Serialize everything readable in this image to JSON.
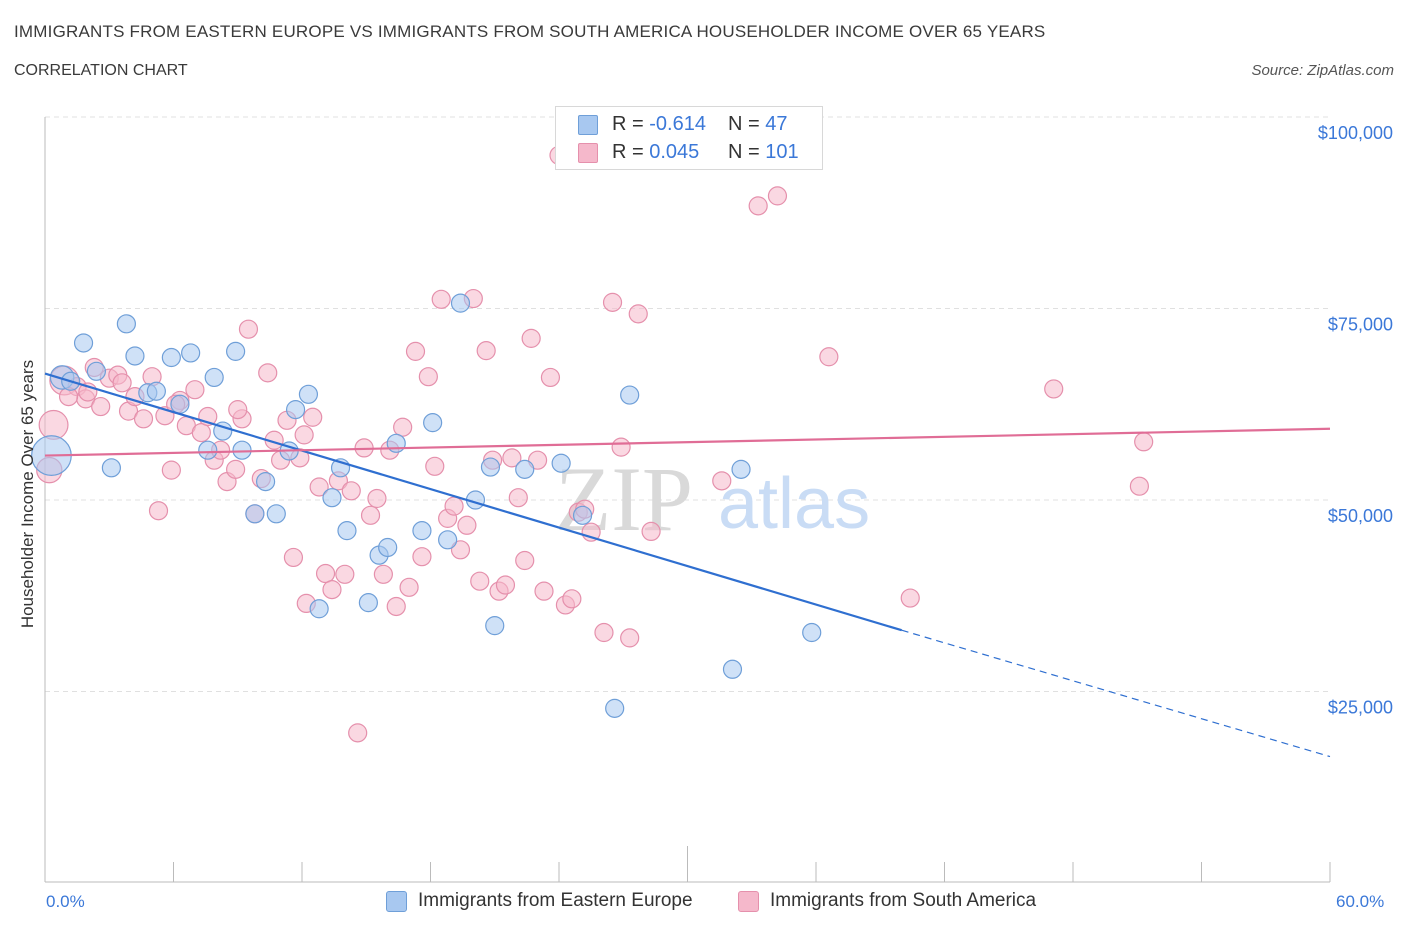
{
  "header": {
    "title": "IMMIGRANTS FROM EASTERN EUROPE VS IMMIGRANTS FROM SOUTH AMERICA HOUSEHOLDER INCOME OVER 65 YEARS",
    "subtitle": "CORRELATION CHART",
    "source": "Source: ZipAtlas.com"
  },
  "watermark": {
    "zip": "ZIP",
    "atlas": "atlas"
  },
  "stats": [
    {
      "r_label": "R =",
      "r_value": "-0.614",
      "n_label": "N =",
      "n_value": "47",
      "color": "#a8c8f0"
    },
    {
      "r_label": "R =",
      "r_value": "0.045",
      "n_label": "N =",
      "n_value": "101",
      "color": "#f5b8cb"
    }
  ],
  "legend": [
    {
      "label": "Immigrants from Eastern Europe",
      "color": "#a8c8f0"
    },
    {
      "label": "Immigrants from South America",
      "color": "#f5b8cb"
    }
  ],
  "colors": {
    "blue_fill": "#a8c8f0",
    "blue_stroke": "#6f9fd8",
    "blue_line": "#2f6fd0",
    "pink_fill": "#f5b8cb",
    "pink_stroke": "#e590ac",
    "pink_line": "#e06d96",
    "axis_text": "#3b78d8",
    "grid": "#e0e0e0"
  },
  "chart_data": {
    "type": "scatter",
    "title": "IMMIGRANTS FROM EASTERN EUROPE VS IMMIGRANTS FROM SOUTH AMERICA HOUSEHOLDER INCOME OVER 65 YEARS",
    "xlabel": "",
    "ylabel": "Householder Income Over 65 years",
    "xlim": [
      0,
      60
    ],
    "ylim": [
      0,
      100000
    ],
    "x_tick_labels": [
      "0.0%",
      "60.0%"
    ],
    "y_tick_labels": [
      "$25,000",
      "$50,000",
      "$75,000",
      "$100,000"
    ],
    "y_ticks": [
      25000,
      50000,
      75000,
      100000
    ],
    "grid": true,
    "legend_position": "bottom",
    "series": [
      {
        "name": "Immigrants from Eastern Europe",
        "trend": {
          "x0": 0,
          "y0": 66500,
          "x1": 40,
          "y1": 33000,
          "dashed_to_x": 60,
          "dashed_to_y": 16500
        },
        "points": [
          [
            0.3,
            55800,
            2.2
          ],
          [
            0.8,
            66000,
            1.3
          ],
          [
            1.2,
            65500,
            1
          ],
          [
            1.8,
            70500,
            1
          ],
          [
            2.4,
            66800,
            1
          ],
          [
            3.1,
            54200,
            1
          ],
          [
            3.8,
            73000,
            1
          ],
          [
            4.2,
            68800,
            1
          ],
          [
            4.8,
            64000,
            1
          ],
          [
            5.2,
            64200,
            1
          ],
          [
            5.9,
            68600,
            1
          ],
          [
            6.3,
            62500,
            1
          ],
          [
            6.8,
            69200,
            1
          ],
          [
            7.6,
            56500,
            1
          ],
          [
            7.9,
            66000,
            1
          ],
          [
            8.3,
            59000,
            1
          ],
          [
            8.9,
            69400,
            1
          ],
          [
            9.2,
            56500,
            1
          ],
          [
            9.8,
            48200,
            1
          ],
          [
            10.3,
            52400,
            1
          ],
          [
            10.8,
            48200,
            1
          ],
          [
            11.4,
            56400,
            1
          ],
          [
            11.7,
            61800,
            1
          ],
          [
            12.3,
            63800,
            1
          ],
          [
            12.8,
            35800,
            1
          ],
          [
            13.4,
            50300,
            1
          ],
          [
            13.8,
            54200,
            1
          ],
          [
            14.1,
            46000,
            1
          ],
          [
            15.1,
            36600,
            1
          ],
          [
            15.6,
            42800,
            1
          ],
          [
            16.0,
            43800,
            1
          ],
          [
            16.4,
            57400,
            1
          ],
          [
            17.6,
            46000,
            1
          ],
          [
            18.1,
            60100,
            1
          ],
          [
            18.8,
            44800,
            1
          ],
          [
            19.4,
            75700,
            1
          ],
          [
            20.1,
            50000,
            1
          ],
          [
            20.8,
            54300,
            1
          ],
          [
            21.0,
            33600,
            1
          ],
          [
            22.4,
            54000,
            1
          ],
          [
            24.1,
            54800,
            1
          ],
          [
            25.1,
            48000,
            1
          ],
          [
            26.6,
            22800,
            1
          ],
          [
            27.3,
            63700,
            1
          ],
          [
            32.1,
            27900,
            1
          ],
          [
            32.5,
            54000,
            1
          ],
          [
            35.8,
            32700,
            1
          ]
        ]
      },
      {
        "name": "Immigrants from South America",
        "trend": {
          "x0": 0,
          "y0": 55800,
          "x1": 60,
          "y1": 59300
        },
        "points": [
          [
            0.2,
            53900,
            1.4
          ],
          [
            0.4,
            59800,
            1.6
          ],
          [
            0.9,
            65600,
            1.6
          ],
          [
            1.5,
            64800,
            1
          ],
          [
            1.9,
            63200,
            1
          ],
          [
            2.3,
            67300,
            1
          ],
          [
            2.6,
            62200,
            1
          ],
          [
            3.0,
            65900,
            1
          ],
          [
            3.4,
            66300,
            1
          ],
          [
            3.9,
            61600,
            1
          ],
          [
            4.2,
            63500,
            1
          ],
          [
            4.6,
            60600,
            1
          ],
          [
            5.0,
            66100,
            1
          ],
          [
            5.3,
            48600,
            1
          ],
          [
            5.6,
            61000,
            1
          ],
          [
            5.9,
            53900,
            1
          ],
          [
            6.3,
            63000,
            1
          ],
          [
            6.6,
            59700,
            1
          ],
          [
            7.0,
            64400,
            1
          ],
          [
            7.3,
            58800,
            1
          ],
          [
            7.6,
            60900,
            1
          ],
          [
            7.9,
            55200,
            1
          ],
          [
            8.2,
            56500,
            1
          ],
          [
            8.5,
            52400,
            1
          ],
          [
            8.9,
            54000,
            1
          ],
          [
            9.2,
            60600,
            1
          ],
          [
            9.5,
            72300,
            1
          ],
          [
            9.8,
            48200,
            1
          ],
          [
            10.1,
            52800,
            1
          ],
          [
            10.4,
            66600,
            1
          ],
          [
            10.7,
            57800,
            1
          ],
          [
            11.0,
            55200,
            1
          ],
          [
            11.3,
            60400,
            1
          ],
          [
            11.6,
            42500,
            1
          ],
          [
            11.9,
            55500,
            1
          ],
          [
            12.2,
            36500,
            1
          ],
          [
            12.5,
            60800,
            1
          ],
          [
            12.8,
            51700,
            1
          ],
          [
            13.1,
            40400,
            1
          ],
          [
            13.4,
            38300,
            1
          ],
          [
            13.7,
            52500,
            1
          ],
          [
            14.0,
            40300,
            1
          ],
          [
            14.3,
            51200,
            1
          ],
          [
            14.6,
            19600,
            1
          ],
          [
            14.9,
            56800,
            1
          ],
          [
            15.2,
            48000,
            1
          ],
          [
            15.5,
            50200,
            1
          ],
          [
            15.8,
            40300,
            1
          ],
          [
            16.1,
            56500,
            1
          ],
          [
            16.4,
            36100,
            1
          ],
          [
            16.7,
            59500,
            1
          ],
          [
            17.0,
            38600,
            1
          ],
          [
            17.3,
            69400,
            1
          ],
          [
            17.6,
            42600,
            1
          ],
          [
            17.9,
            66100,
            1
          ],
          [
            18.2,
            54400,
            1
          ],
          [
            18.5,
            76200,
            1
          ],
          [
            18.8,
            47600,
            1
          ],
          [
            19.1,
            49200,
            1
          ],
          [
            19.4,
            43500,
            1
          ],
          [
            19.7,
            46700,
            1
          ],
          [
            20.0,
            76300,
            1
          ],
          [
            20.3,
            39400,
            1
          ],
          [
            20.6,
            69500,
            1
          ],
          [
            20.9,
            55200,
            1
          ],
          [
            21.2,
            38100,
            1
          ],
          [
            21.5,
            38900,
            1
          ],
          [
            21.8,
            55500,
            1
          ],
          [
            22.1,
            50300,
            1
          ],
          [
            22.4,
            42100,
            1
          ],
          [
            22.7,
            71100,
            1
          ],
          [
            23.0,
            55200,
            1
          ],
          [
            23.3,
            38100,
            1
          ],
          [
            23.6,
            66000,
            1
          ],
          [
            24.0,
            95000,
            1
          ],
          [
            24.3,
            36300,
            1
          ],
          [
            24.6,
            37100,
            1
          ],
          [
            24.9,
            48400,
            1
          ],
          [
            25.2,
            48800,
            1
          ],
          [
            25.5,
            45800,
            1
          ],
          [
            26.1,
            32700,
            1
          ],
          [
            26.5,
            75800,
            1
          ],
          [
            26.9,
            56900,
            1
          ],
          [
            27.3,
            32000,
            1
          ],
          [
            27.7,
            74300,
            1
          ],
          [
            28.3,
            45900,
            1
          ],
          [
            31.6,
            52500,
            1
          ],
          [
            33.3,
            88400,
            1
          ],
          [
            34.2,
            89700,
            1
          ],
          [
            36.6,
            68700,
            1
          ],
          [
            40.4,
            37200,
            1
          ],
          [
            47.1,
            64500,
            1
          ],
          [
            51.1,
            51800,
            1
          ],
          [
            51.3,
            57600,
            1
          ],
          [
            1.1,
            63500,
            1
          ],
          [
            2.0,
            64100,
            1
          ],
          [
            3.6,
            65300,
            1
          ],
          [
            6.1,
            62500,
            1
          ],
          [
            9.0,
            61800,
            1
          ],
          [
            12.1,
            58500,
            1
          ],
          [
            33.8,
            97000,
            1
          ]
        ]
      }
    ]
  }
}
